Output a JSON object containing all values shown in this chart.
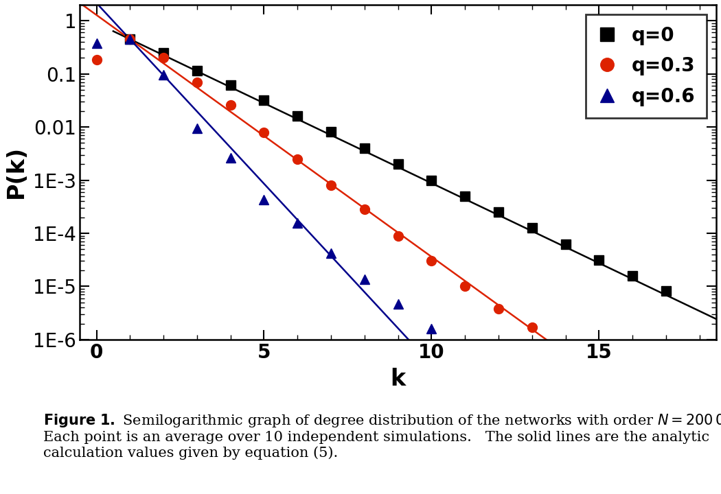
{
  "xlabel": "k",
  "ylabel": "P(k)",
  "xlim": [
    -0.5,
    18.5
  ],
  "ylim_log": [
    1e-06,
    2.0
  ],
  "yticks": [
    1e-06,
    1e-05,
    0.0001,
    0.001,
    0.01,
    0.1,
    1.0
  ],
  "ytick_labels": [
    "1E-6",
    "1E-5",
    "1E-4",
    "1E-3",
    "0.01",
    "0.1",
    "1"
  ],
  "xticks": [
    0,
    5,
    10,
    15
  ],
  "q0_color": "#000000",
  "q03_color": "#dd2200",
  "q06_color": "#00008B",
  "q0_scatter_x": [
    1,
    2,
    3,
    4,
    5,
    6,
    7,
    8,
    9,
    10,
    11,
    12,
    13,
    14,
    15,
    16,
    17
  ],
  "q0_scatter_y": [
    0.45,
    0.25,
    0.115,
    0.062,
    0.032,
    0.016,
    0.0082,
    0.004,
    0.002,
    0.001,
    0.0005,
    0.00025,
    0.000125,
    6.3e-05,
    3.1e-05,
    1.6e-05,
    8.2e-06
  ],
  "q0_line_xmin": 0.5,
  "q0_line_xmax": 18.5,
  "q0_line_y0": 0.9,
  "q0_line_slope": -0.301,
  "q03_scatter_x": [
    0,
    1,
    2,
    3,
    4,
    5,
    6,
    7,
    8,
    9,
    10,
    11,
    12,
    13
  ],
  "q03_scatter_y": [
    0.185,
    0.45,
    0.2,
    0.07,
    0.026,
    0.008,
    0.0025,
    0.0008,
    0.00028,
    9e-05,
    3e-05,
    1e-05,
    3.8e-06,
    1.7e-06
  ],
  "q03_line_xmin": -0.5,
  "q03_line_xmax": 13.5,
  "q03_line_y0": 0.45,
  "q03_line_slope_per_unit": -0.455,
  "q06_scatter_x": [
    0,
    1,
    2,
    3,
    4,
    5,
    6,
    7,
    8,
    9,
    10
  ],
  "q06_scatter_y": [
    0.38,
    0.45,
    0.095,
    0.0095,
    0.0026,
    0.00043,
    0.000155,
    4.2e-05,
    1.35e-05,
    4.7e-06,
    1.6e-06
  ],
  "q06_line_xmin": -0.5,
  "q06_line_xmax": 10.8,
  "q06_line_y0": 0.45,
  "q06_line_slope_per_unit": -0.68,
  "legend_labels": [
    "q=0",
    "q=0.3",
    "q=0.6"
  ],
  "marker_size": 10,
  "line_width": 1.8
}
